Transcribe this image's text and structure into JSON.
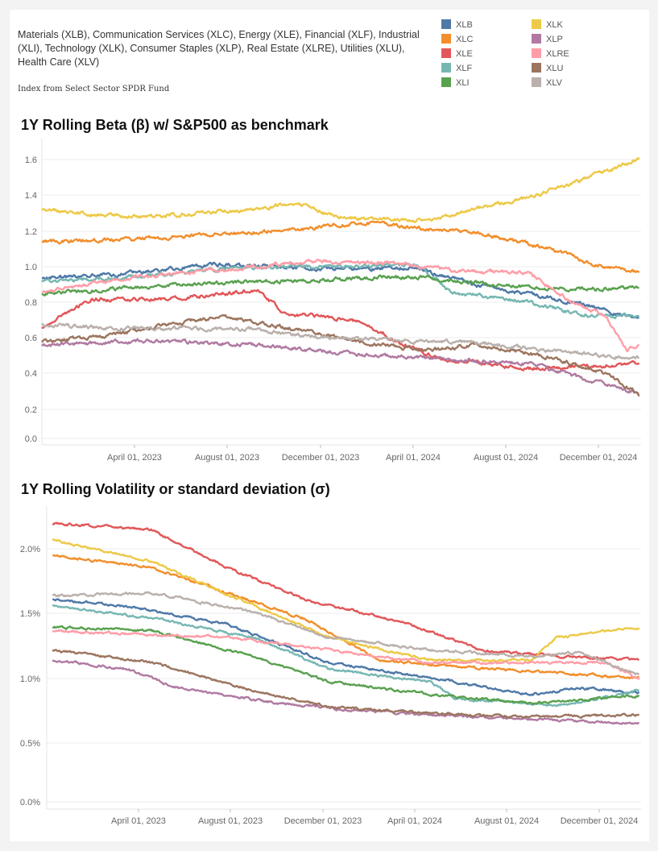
{
  "description": "Materials (XLB), Communication Services (XLC), Energy (XLE), Financial (XLF), Industrial (XLI), Technology (XLK), Consumer Staples (XLP), Real Estate (XLRE), Utilities (XLU), Health Care (XLV)",
  "source": "Index from Select Sector SPDR Fund",
  "legend": [
    {
      "name": "XLB",
      "color": "#4e79a7"
    },
    {
      "name": "XLC",
      "color": "#f28e2b"
    },
    {
      "name": "XLE",
      "color": "#e15759"
    },
    {
      "name": "XLF",
      "color": "#76b7b2"
    },
    {
      "name": "XLI",
      "color": "#59a14f"
    },
    {
      "name": "XLK",
      "color": "#edc948"
    },
    {
      "name": "XLP",
      "color": "#b07aa1"
    },
    {
      "name": "XLRE",
      "color": "#ff9da7"
    },
    {
      "name": "XLU",
      "color": "#9c755f"
    },
    {
      "name": "XLV",
      "color": "#bab0ac"
    }
  ],
  "chart_data": [
    {
      "type": "line",
      "title": "1Y Rolling Beta (β) w/ S&P500 as benchmark",
      "x_tick_labels": [
        "April 01, 2023",
        "August 01, 2023",
        "December 01, 2023",
        "April 01, 2024",
        "August 01, 2024",
        "December 01, 2024"
      ],
      "y_tick_labels": [
        "0.0",
        "0.2",
        "0.4",
        "0.6",
        "0.8",
        "1.0",
        "1.2",
        "1.4",
        "1.6"
      ],
      "ylim": [
        0,
        1.7
      ],
      "x_domain": [
        "2023-01-01",
        "2024-12-12"
      ],
      "grid": true,
      "series": [
        {
          "name": "XLB",
          "points": [
            [
              "2023-01-01",
              0.92
            ],
            [
              "2023-04-01",
              0.94
            ],
            [
              "2023-08-01",
              1.0
            ],
            [
              "2023-12-01",
              0.97
            ],
            [
              "2024-03-15",
              0.98
            ],
            [
              "2024-06-01",
              0.88
            ],
            [
              "2024-08-01",
              0.83
            ],
            [
              "2024-10-01",
              0.77
            ],
            [
              "2024-12-10",
              0.69
            ]
          ]
        },
        {
          "name": "XLC",
          "points": [
            [
              "2023-01-01",
              1.13
            ],
            [
              "2023-04-01",
              1.14
            ],
            [
              "2023-08-01",
              1.17
            ],
            [
              "2023-11-01",
              1.2
            ],
            [
              "2024-01-15",
              1.24
            ],
            [
              "2024-03-15",
              1.21
            ],
            [
              "2024-06-01",
              1.18
            ],
            [
              "2024-09-01",
              1.08
            ],
            [
              "2024-10-15",
              1.0
            ],
            [
              "2024-12-10",
              0.95
            ]
          ]
        },
        {
          "name": "XLE",
          "points": [
            [
              "2023-01-01",
              0.64
            ],
            [
              "2023-03-01",
              0.8
            ],
            [
              "2023-06-01",
              0.8
            ],
            [
              "2023-09-15",
              0.85
            ],
            [
              "2023-10-15",
              0.72
            ],
            [
              "2024-01-15",
              0.67
            ],
            [
              "2024-03-01",
              0.55
            ],
            [
              "2024-04-15",
              0.46
            ],
            [
              "2024-08-01",
              0.4
            ],
            [
              "2024-12-10",
              0.43
            ]
          ]
        },
        {
          "name": "XLF",
          "points": [
            [
              "2023-01-01",
              0.9
            ],
            [
              "2023-05-01",
              0.93
            ],
            [
              "2023-09-01",
              0.98
            ],
            [
              "2024-01-15",
              0.99
            ],
            [
              "2024-03-20",
              1.0
            ],
            [
              "2024-05-01",
              0.84
            ],
            [
              "2024-08-01",
              0.78
            ],
            [
              "2024-10-01",
              0.71
            ],
            [
              "2024-12-10",
              0.7
            ]
          ]
        },
        {
          "name": "XLI",
          "points": [
            [
              "2023-01-01",
              0.83
            ],
            [
              "2023-05-01",
              0.87
            ],
            [
              "2023-09-01",
              0.9
            ],
            [
              "2023-12-01",
              0.91
            ],
            [
              "2024-03-15",
              0.93
            ],
            [
              "2024-06-01",
              0.89
            ],
            [
              "2024-09-01",
              0.86
            ],
            [
              "2024-12-10",
              0.86
            ]
          ]
        },
        {
          "name": "XLK",
          "points": [
            [
              "2023-01-01",
              1.31
            ],
            [
              "2023-05-01",
              1.27
            ],
            [
              "2023-09-01",
              1.31
            ],
            [
              "2023-11-01",
              1.35
            ],
            [
              "2023-12-15",
              1.27
            ],
            [
              "2024-02-15",
              1.25
            ],
            [
              "2024-04-15",
              1.26
            ],
            [
              "2024-06-01",
              1.32
            ],
            [
              "2024-08-01",
              1.38
            ],
            [
              "2024-10-01",
              1.48
            ],
            [
              "2024-12-10",
              1.6
            ]
          ]
        },
        {
          "name": "XLP",
          "points": [
            [
              "2023-01-01",
              0.53
            ],
            [
              "2023-05-01",
              0.56
            ],
            [
              "2023-09-01",
              0.54
            ],
            [
              "2024-01-15",
              0.48
            ],
            [
              "2024-04-01",
              0.46
            ],
            [
              "2024-08-01",
              0.43
            ],
            [
              "2024-10-15",
              0.33
            ],
            [
              "2024-12-10",
              0.26
            ]
          ]
        },
        {
          "name": "XLRE",
          "points": [
            [
              "2023-01-01",
              0.84
            ],
            [
              "2023-05-01",
              0.93
            ],
            [
              "2023-09-01",
              0.98
            ],
            [
              "2023-12-01",
              1.02
            ],
            [
              "2024-03-15",
              1.0
            ],
            [
              "2024-05-01",
              0.96
            ],
            [
              "2024-08-01",
              0.95
            ],
            [
              "2024-09-15",
              0.8
            ],
            [
              "2024-11-01",
              0.7
            ],
            [
              "2024-11-25",
              0.5
            ],
            [
              "2024-12-10",
              0.54
            ]
          ]
        },
        {
          "name": "XLU",
          "points": [
            [
              "2023-01-01",
              0.55
            ],
            [
              "2023-04-01",
              0.6
            ],
            [
              "2023-08-01",
              0.7
            ],
            [
              "2023-10-15",
              0.64
            ],
            [
              "2024-01-15",
              0.55
            ],
            [
              "2024-04-01",
              0.5
            ],
            [
              "2024-06-01",
              0.54
            ],
            [
              "2024-09-01",
              0.46
            ],
            [
              "2024-11-01",
              0.37
            ],
            [
              "2024-12-10",
              0.25
            ]
          ]
        },
        {
          "name": "XLV",
          "points": [
            [
              "2023-01-01",
              0.65
            ],
            [
              "2023-05-01",
              0.63
            ],
            [
              "2023-09-01",
              0.63
            ],
            [
              "2023-12-01",
              0.58
            ],
            [
              "2024-03-01",
              0.56
            ],
            [
              "2024-06-01",
              0.55
            ],
            [
              "2024-09-01",
              0.5
            ],
            [
              "2024-12-10",
              0.46
            ]
          ]
        }
      ]
    },
    {
      "type": "line",
      "title": "1Y Rolling Volatility or standard deviation (σ)",
      "x_tick_labels": [
        "April 01, 2023",
        "August 01, 2023",
        "December 01, 2023",
        "April 01, 2024",
        "August 01, 2024",
        "December 01, 2024"
      ],
      "y_tick_labels": [
        "0.0%",
        "0.5%",
        "1.0%",
        "1.5%",
        "2.0%"
      ],
      "ylim": [
        0,
        2.35
      ],
      "x_domain": [
        "2022-12-25",
        "2024-12-12"
      ],
      "grid": true,
      "series": [
        {
          "name": "XLB",
          "points": [
            [
              "2023-01-01",
              1.6
            ],
            [
              "2023-04-01",
              1.55
            ],
            [
              "2023-08-01",
              1.4
            ],
            [
              "2023-12-01",
              1.1
            ],
            [
              "2024-04-01",
              0.98
            ],
            [
              "2024-08-01",
              0.85
            ],
            [
              "2024-10-01",
              0.9
            ],
            [
              "2024-12-10",
              0.86
            ]
          ]
        },
        {
          "name": "XLC",
          "points": [
            [
              "2023-01-01",
              1.95
            ],
            [
              "2023-05-01",
              1.85
            ],
            [
              "2023-08-01",
              1.65
            ],
            [
              "2023-11-01",
              1.45
            ],
            [
              "2024-02-01",
              1.12
            ],
            [
              "2024-05-01",
              1.07
            ],
            [
              "2024-09-01",
              1.02
            ],
            [
              "2024-12-10",
              0.98
            ]
          ]
        },
        {
          "name": "XLE",
          "points": [
            [
              "2023-01-01",
              2.2
            ],
            [
              "2023-05-01",
              2.15
            ],
            [
              "2023-08-01",
              1.85
            ],
            [
              "2023-11-01",
              1.6
            ],
            [
              "2024-03-01",
              1.42
            ],
            [
              "2024-06-01",
              1.2
            ],
            [
              "2024-09-01",
              1.15
            ],
            [
              "2024-12-10",
              1.12
            ]
          ]
        },
        {
          "name": "XLF",
          "points": [
            [
              "2023-01-01",
              1.55
            ],
            [
              "2023-05-01",
              1.45
            ],
            [
              "2023-09-01",
              1.3
            ],
            [
              "2023-12-01",
              1.05
            ],
            [
              "2024-04-01",
              0.95
            ],
            [
              "2024-05-01",
              0.82
            ],
            [
              "2024-09-01",
              0.76
            ],
            [
              "2024-12-10",
              0.88
            ]
          ]
        },
        {
          "name": "XLI",
          "points": [
            [
              "2023-01-01",
              1.38
            ],
            [
              "2023-05-01",
              1.35
            ],
            [
              "2023-09-01",
              1.15
            ],
            [
              "2023-12-01",
              0.95
            ],
            [
              "2024-04-01",
              0.85
            ],
            [
              "2024-08-01",
              0.78
            ],
            [
              "2024-12-10",
              0.84
            ]
          ]
        },
        {
          "name": "XLK",
          "points": [
            [
              "2023-01-01",
              2.07
            ],
            [
              "2023-05-01",
              1.9
            ],
            [
              "2023-09-01",
              1.55
            ],
            [
              "2023-12-01",
              1.3
            ],
            [
              "2024-04-01",
              1.12
            ],
            [
              "2024-08-01",
              1.12
            ],
            [
              "2024-09-01",
              1.3
            ],
            [
              "2024-12-10",
              1.38
            ]
          ]
        },
        {
          "name": "XLP",
          "points": [
            [
              "2023-01-01",
              1.12
            ],
            [
              "2023-04-01",
              1.05
            ],
            [
              "2023-06-01",
              0.9
            ],
            [
              "2023-10-01",
              0.78
            ],
            [
              "2024-01-01",
              0.72
            ],
            [
              "2024-06-01",
              0.67
            ],
            [
              "2024-12-10",
              0.62
            ]
          ]
        },
        {
          "name": "XLRE",
          "points": [
            [
              "2023-01-01",
              1.35
            ],
            [
              "2023-05-01",
              1.32
            ],
            [
              "2023-08-01",
              1.3
            ],
            [
              "2023-12-01",
              1.2
            ],
            [
              "2024-04-01",
              1.1
            ],
            [
              "2024-08-01",
              1.1
            ],
            [
              "2024-11-01",
              1.1
            ],
            [
              "2024-12-10",
              0.97
            ]
          ]
        },
        {
          "name": "XLU",
          "points": [
            [
              "2023-01-01",
              1.2
            ],
            [
              "2023-05-01",
              1.1
            ],
            [
              "2023-09-01",
              0.88
            ],
            [
              "2023-12-01",
              0.75
            ],
            [
              "2024-04-01",
              0.7
            ],
            [
              "2024-08-01",
              0.67
            ],
            [
              "2024-12-10",
              0.69
            ]
          ]
        },
        {
          "name": "XLV",
          "points": [
            [
              "2023-01-01",
              1.63
            ],
            [
              "2023-05-01",
              1.65
            ],
            [
              "2023-09-01",
              1.5
            ],
            [
              "2023-12-01",
              1.3
            ],
            [
              "2024-04-01",
              1.2
            ],
            [
              "2024-08-01",
              1.15
            ],
            [
              "2024-10-01",
              1.18
            ],
            [
              "2024-12-10",
              1.0
            ]
          ]
        }
      ]
    }
  ]
}
